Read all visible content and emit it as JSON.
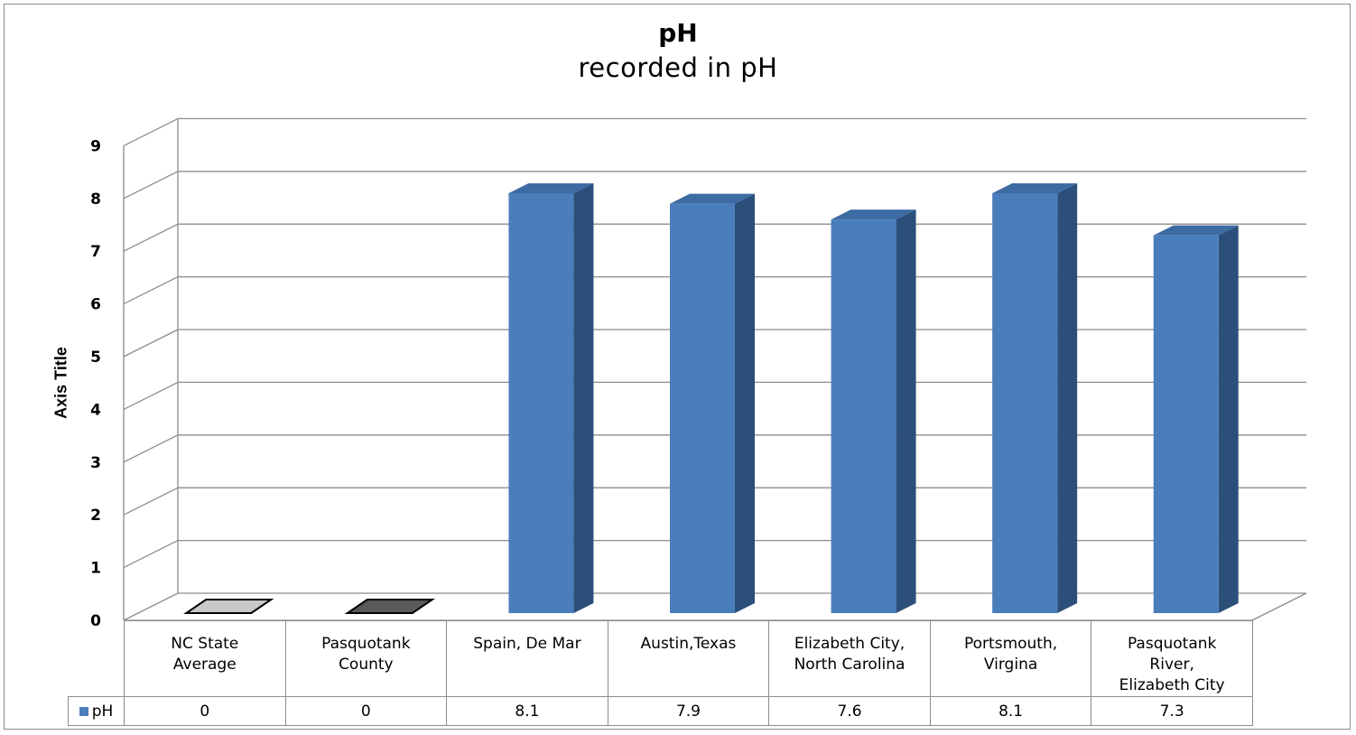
{
  "chart_data": {
    "type": "bar",
    "title": "pH",
    "subtitle": "recorded in pH",
    "ylabel": "Axis Title",
    "ylim": [
      0,
      9
    ],
    "yticks": [
      "0",
      "1",
      "2",
      "3",
      "4",
      "5",
      "6",
      "7",
      "8",
      "9"
    ],
    "grid": true,
    "categories": [
      [
        "NC State",
        "Average"
      ],
      [
        "Pasquotank",
        "County"
      ],
      [
        "Spain, De Mar"
      ],
      [
        "Austin,Texas"
      ],
      [
        "Elizabeth City,",
        "North Carolina"
      ],
      [
        "Portsmouth,",
        "Virgina"
      ],
      [
        "Pasquotank",
        "River,",
        "Elizabeth City"
      ]
    ],
    "series": [
      {
        "name": "pH",
        "values": [
          0,
          0,
          8.1,
          7.9,
          7.6,
          8.1,
          7.3
        ],
        "value_labels": [
          "0",
          "0",
          "8.1",
          "7.9",
          "7.6",
          "8.1",
          "7.3"
        ],
        "color": "#4a7ebb",
        "side_color": "#2c4f7a",
        "top_color": "#3d6ba3"
      }
    ],
    "zero_marker_colors": [
      "#c8c8c8",
      "#595959"
    ]
  }
}
